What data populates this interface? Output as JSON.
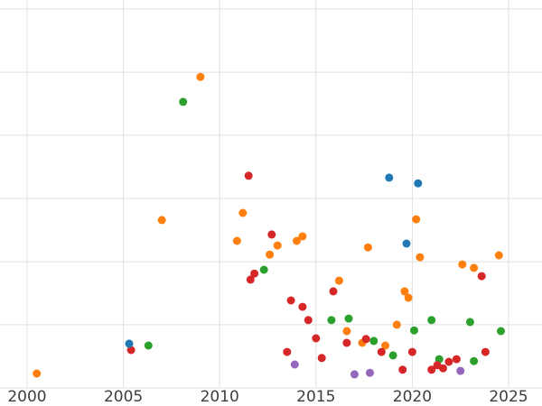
{
  "chart_data": {
    "type": "scatter",
    "title": "",
    "xlabel": "",
    "ylabel": "",
    "x_ticks": [
      "2000",
      "2005",
      "2010",
      "2015",
      "2020",
      "2025"
    ],
    "x_tick_values": [
      2000,
      2005,
      2010,
      2015,
      2020,
      2025
    ],
    "xlim": [
      1998.6,
      2026.7
    ],
    "ylim": [
      0,
      100
    ],
    "y_axis_note": "y tick labels cropped off left edge; values estimated on 0-100 scale",
    "y_gridline_values": [
      0,
      16.7,
      33.3,
      50,
      66.7,
      83.3,
      100
    ],
    "grid": true,
    "legend": false,
    "marker_radius": 4.5,
    "series": [
      {
        "name": "orange",
        "color": "#ff7f0e",
        "points": [
          [
            2000.5,
            3.8
          ],
          [
            2007.0,
            44.3
          ],
          [
            2009.0,
            82.1
          ],
          [
            2010.9,
            38.8
          ],
          [
            2011.2,
            46.2
          ],
          [
            2012.6,
            35.2
          ],
          [
            2013.0,
            37.6
          ],
          [
            2014.0,
            38.8
          ],
          [
            2014.3,
            40.0
          ],
          [
            2016.2,
            28.3
          ],
          [
            2016.6,
            15.0
          ],
          [
            2017.4,
            11.9
          ],
          [
            2017.7,
            37.1
          ],
          [
            2018.6,
            11.2
          ],
          [
            2019.2,
            16.7
          ],
          [
            2019.6,
            25.5
          ],
          [
            2019.8,
            23.8
          ],
          [
            2020.2,
            44.5
          ],
          [
            2020.4,
            34.5
          ],
          [
            2022.6,
            32.6
          ],
          [
            2023.2,
            31.7
          ],
          [
            2024.5,
            35.0
          ]
        ]
      },
      {
        "name": "green",
        "color": "#2ca02c",
        "points": [
          [
            2006.3,
            11.2
          ],
          [
            2008.1,
            75.5
          ],
          [
            2012.3,
            31.2
          ],
          [
            2015.8,
            17.9
          ],
          [
            2016.7,
            18.3
          ],
          [
            2018.0,
            12.4
          ],
          [
            2019.0,
            8.6
          ],
          [
            2020.1,
            15.2
          ],
          [
            2021.0,
            17.9
          ],
          [
            2021.4,
            7.6
          ],
          [
            2023.0,
            17.4
          ],
          [
            2023.2,
            7.1
          ],
          [
            2024.6,
            15.0
          ]
        ]
      },
      {
        "name": "red",
        "color": "#d62728",
        "points": [
          [
            2005.4,
            10.0
          ],
          [
            2011.5,
            56.0
          ],
          [
            2011.6,
            28.6
          ],
          [
            2011.8,
            30.2
          ],
          [
            2012.7,
            40.5
          ],
          [
            2013.5,
            9.5
          ],
          [
            2013.7,
            23.1
          ],
          [
            2014.3,
            21.4
          ],
          [
            2014.6,
            17.9
          ],
          [
            2015.0,
            13.1
          ],
          [
            2015.3,
            7.9
          ],
          [
            2015.9,
            25.5
          ],
          [
            2016.6,
            11.9
          ],
          [
            2017.6,
            12.9
          ],
          [
            2018.4,
            9.5
          ],
          [
            2019.5,
            4.8
          ],
          [
            2020.0,
            9.5
          ],
          [
            2021.0,
            4.8
          ],
          [
            2021.3,
            6.0
          ],
          [
            2021.6,
            5.2
          ],
          [
            2021.9,
            6.9
          ],
          [
            2022.3,
            7.6
          ],
          [
            2023.6,
            29.5
          ],
          [
            2023.8,
            9.5
          ]
        ]
      },
      {
        "name": "blue",
        "color": "#1f77b4",
        "points": [
          [
            2005.3,
            11.7
          ],
          [
            2018.8,
            55.5
          ],
          [
            2019.7,
            38.1
          ],
          [
            2020.3,
            54.0
          ]
        ]
      },
      {
        "name": "purple",
        "color": "#9467bd",
        "points": [
          [
            2013.9,
            6.2
          ],
          [
            2017.0,
            3.6
          ],
          [
            2017.8,
            4.0
          ],
          [
            2022.5,
            4.5
          ]
        ]
      }
    ]
  },
  "layout_colors": {
    "background": "#ffffff",
    "gridline": "#e1e1e1",
    "tick_label": "#3d3d3d"
  }
}
